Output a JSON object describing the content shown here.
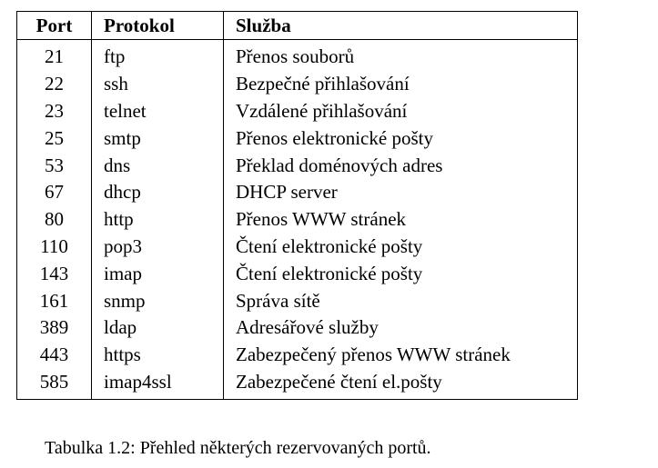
{
  "table": {
    "headers": {
      "port": "Port",
      "protocol": "Protokol",
      "service": "Služba"
    },
    "rows": [
      {
        "port": "21",
        "protocol": "ftp",
        "service": "Přenos souborů"
      },
      {
        "port": "22",
        "protocol": "ssh",
        "service": "Bezpečné přihlašování"
      },
      {
        "port": "23",
        "protocol": "telnet",
        "service": "Vzdálené přihlašování"
      },
      {
        "port": "25",
        "protocol": "smtp",
        "service": "Přenos elektronické pošty"
      },
      {
        "port": "53",
        "protocol": "dns",
        "service": "Překlad doménových adres"
      },
      {
        "port": "67",
        "protocol": "dhcp",
        "service": "DHCP server"
      },
      {
        "port": "80",
        "protocol": "http",
        "service": "Přenos WWW stránek"
      },
      {
        "port": "110",
        "protocol": "pop3",
        "service": "Čtení elektronické pošty"
      },
      {
        "port": "143",
        "protocol": "imap",
        "service": "Čtení elektronické pošty"
      },
      {
        "port": "161",
        "protocol": "snmp",
        "service": "Správa sítě"
      },
      {
        "port": "389",
        "protocol": "ldap",
        "service": "Adresářové služby"
      },
      {
        "port": "443",
        "protocol": "https",
        "service": "Zabezpečený přenos WWW stránek"
      },
      {
        "port": "585",
        "protocol": "imap4ssl",
        "service": "Zabezpečené čtení el.pošty"
      }
    ]
  },
  "caption": "Tabulka 1.2: Přehled některých rezervovaných portů."
}
